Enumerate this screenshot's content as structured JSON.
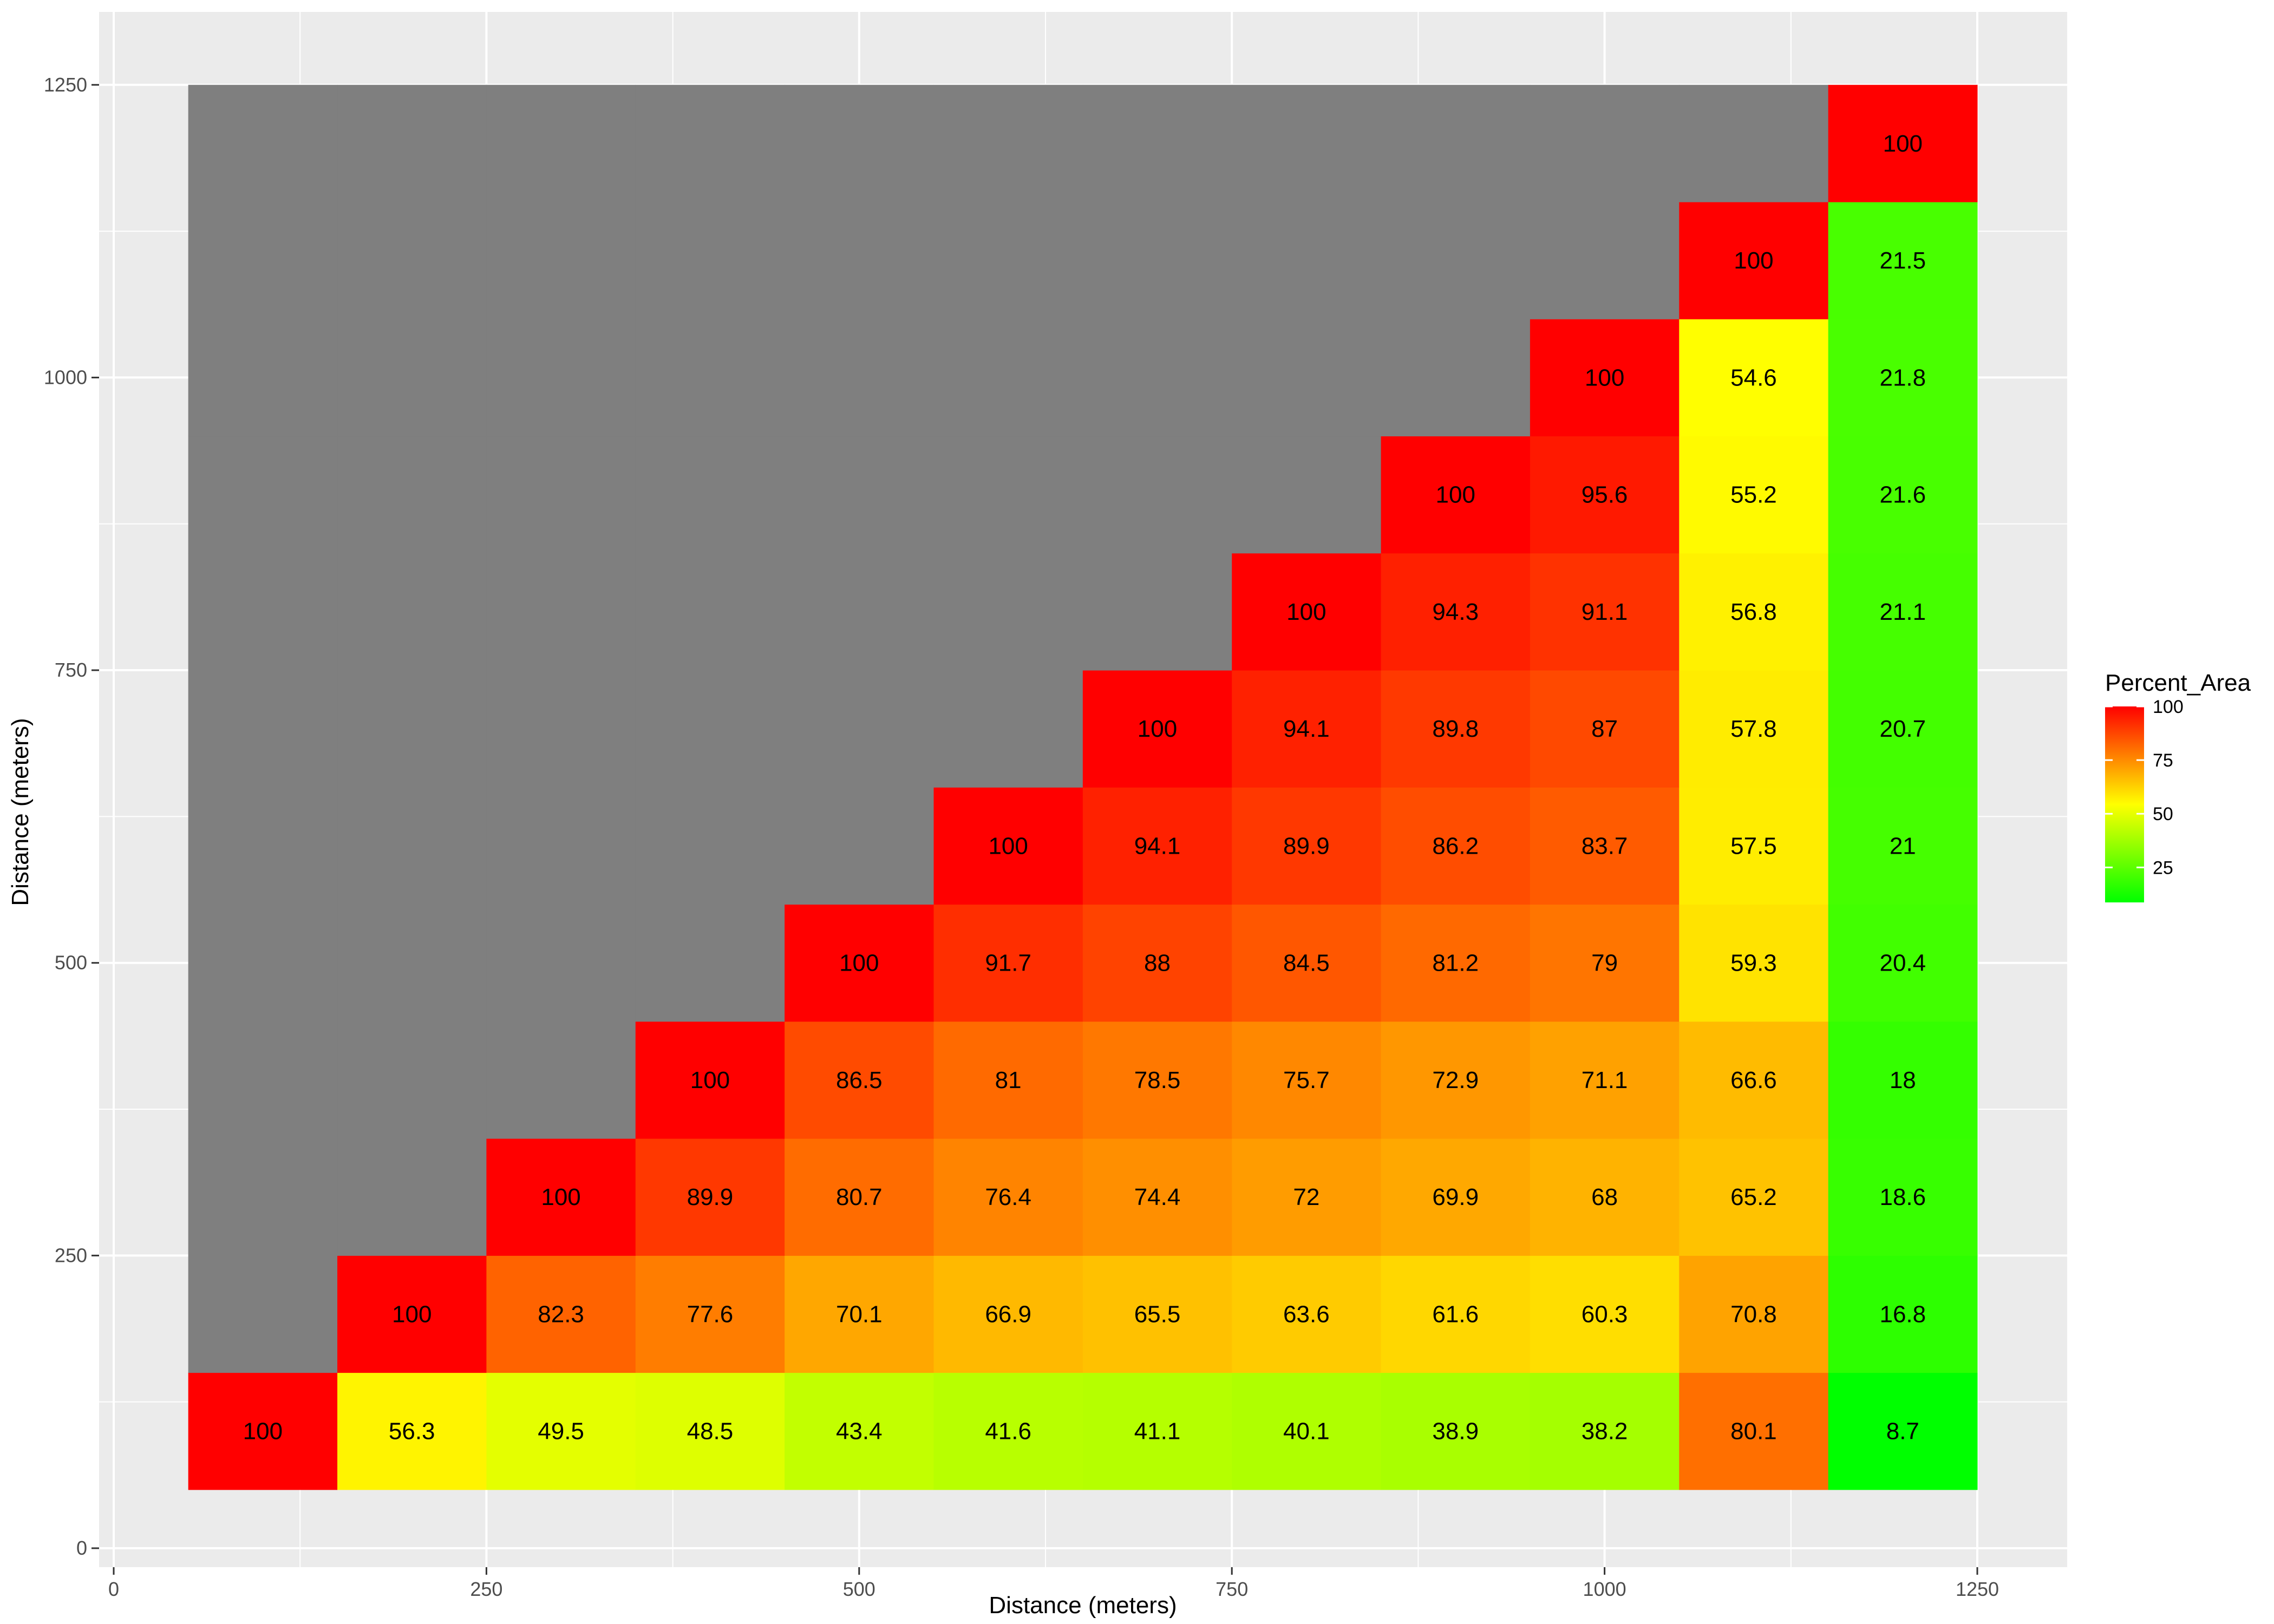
{
  "chart_data": {
    "type": "heatmap",
    "title": "",
    "xlabel": "Distance (meters)",
    "ylabel": "Distance (meters)",
    "xlim": [
      0,
      1250
    ],
    "ylim": [
      0,
      1250
    ],
    "x_ticks": [
      0,
      250,
      500,
      750,
      1000,
      1250
    ],
    "y_ticks": [
      0,
      250,
      500,
      750,
      1000,
      1250
    ],
    "grid": true,
    "cell_size": 100,
    "x_centers": [
      100,
      200,
      300,
      400,
      500,
      600,
      700,
      800,
      900,
      1000,
      1100,
      1200
    ],
    "y_centers": [
      100,
      200,
      300,
      400,
      500,
      600,
      700,
      800,
      900,
      1000,
      1100,
      1200
    ],
    "missing_color": "#7f7f7f",
    "panel_color": "#ebebeb",
    "legend": {
      "title": "Percent_Area",
      "position": "right",
      "ticks": [
        25,
        50,
        75,
        100
      ],
      "min": 8.7,
      "max": 100,
      "colors": [
        "#00ff00",
        "#ffff00",
        "#ff0000"
      ]
    },
    "rows": [
      {
        "y": 100,
        "values": [
          100,
          56.3,
          49.5,
          48.5,
          43.4,
          41.6,
          41.1,
          40.1,
          38.9,
          38.2,
          80.1,
          8.7
        ]
      },
      {
        "y": 200,
        "values": [
          null,
          100,
          82.3,
          77.6,
          70.1,
          66.9,
          65.5,
          63.6,
          61.6,
          60.3,
          70.8,
          16.8
        ]
      },
      {
        "y": 300,
        "values": [
          null,
          null,
          100,
          89.9,
          80.7,
          76.4,
          74.4,
          72,
          69.9,
          68,
          65.2,
          18.6
        ]
      },
      {
        "y": 400,
        "values": [
          null,
          null,
          null,
          100,
          86.5,
          81,
          78.5,
          75.7,
          72.9,
          71.1,
          66.6,
          18
        ]
      },
      {
        "y": 500,
        "values": [
          null,
          null,
          null,
          null,
          100,
          91.7,
          88,
          84.5,
          81.2,
          79,
          59.3,
          20.4
        ]
      },
      {
        "y": 600,
        "values": [
          null,
          null,
          null,
          null,
          null,
          100,
          94.1,
          89.9,
          86.2,
          83.7,
          57.5,
          21
        ]
      },
      {
        "y": 700,
        "values": [
          null,
          null,
          null,
          null,
          null,
          null,
          100,
          94.1,
          89.8,
          87,
          57.8,
          20.7
        ]
      },
      {
        "y": 800,
        "values": [
          null,
          null,
          null,
          null,
          null,
          null,
          null,
          100,
          94.3,
          91.1,
          56.8,
          21.1
        ]
      },
      {
        "y": 900,
        "values": [
          null,
          null,
          null,
          null,
          null,
          null,
          null,
          null,
          100,
          95.6,
          55.2,
          21.6
        ]
      },
      {
        "y": 1000,
        "values": [
          null,
          null,
          null,
          null,
          null,
          null,
          null,
          null,
          null,
          100,
          54.6,
          21.8
        ]
      },
      {
        "y": 1100,
        "values": [
          null,
          null,
          null,
          null,
          null,
          null,
          null,
          null,
          null,
          null,
          100,
          21.5
        ]
      },
      {
        "y": 1200,
        "values": [
          null,
          null,
          null,
          null,
          null,
          null,
          null,
          null,
          null,
          null,
          null,
          100
        ]
      }
    ]
  }
}
